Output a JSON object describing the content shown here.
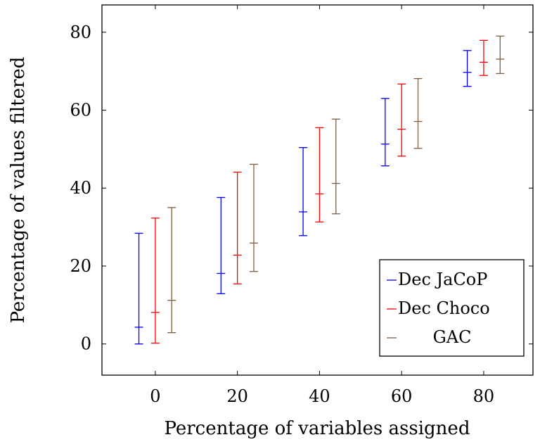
{
  "chart_data": {
    "type": "errorbar",
    "xlabel": "Percentage of variables assigned",
    "ylabel": "Percentage of values filtered",
    "xlim": [
      -13,
      92
    ],
    "ylim": [
      -8,
      87
    ],
    "x_ticks": [
      0,
      20,
      40,
      60,
      80
    ],
    "y_ticks": [
      0,
      20,
      40,
      60,
      80
    ],
    "grid": false,
    "legend_position": "bottom-right",
    "series": [
      {
        "name": "Dec JaCoP",
        "color": "#0000ff",
        "x": [
          -4,
          16,
          36,
          56,
          76
        ],
        "center": [
          4.3,
          18.1,
          33.9,
          51.3,
          69.7
        ],
        "low": [
          0.0,
          12.9,
          27.8,
          45.7,
          66.1
        ],
        "high": [
          28.4,
          37.6,
          50.4,
          63.0,
          75.3
        ]
      },
      {
        "name": "Dec Choco",
        "color": "#ff0000",
        "x": [
          0,
          20,
          40,
          60,
          80
        ],
        "center": [
          8.1,
          22.8,
          38.5,
          55.1,
          72.3
        ],
        "low": [
          0.2,
          15.4,
          31.3,
          48.2,
          68.9
        ],
        "high": [
          32.3,
          44.1,
          55.5,
          66.7,
          77.9
        ]
      },
      {
        "name": "GAC",
        "color": "#7f5f3f",
        "x": [
          4,
          24,
          44,
          64,
          84
        ],
        "center": [
          11.2,
          25.9,
          41.2,
          57.1,
          73.1
        ],
        "low": [
          2.9,
          18.6,
          33.4,
          50.2,
          69.4
        ],
        "high": [
          35.0,
          46.1,
          57.7,
          68.1,
          79.0
        ]
      }
    ]
  }
}
